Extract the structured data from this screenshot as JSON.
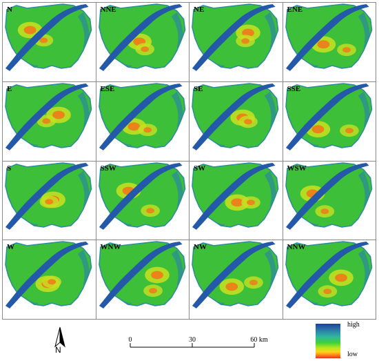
{
  "panels": [
    {
      "label": "N"
    },
    {
      "label": "NNE"
    },
    {
      "label": "NE"
    },
    {
      "label": "ENE"
    },
    {
      "label": "E"
    },
    {
      "label": "ESE"
    },
    {
      "label": "SE"
    },
    {
      "label": "SSE"
    },
    {
      "label": "S"
    },
    {
      "label": "SSW"
    },
    {
      "label": "SW"
    },
    {
      "label": "WSW"
    },
    {
      "label": "W"
    },
    {
      "label": "WNW"
    },
    {
      "label": "NW"
    },
    {
      "label": "NNW"
    }
  ],
  "north_arrow": {
    "label": "N"
  },
  "scale_bar": {
    "ticks": [
      "0",
      "30",
      "60 km"
    ]
  },
  "legend": {
    "high_label": "high",
    "low_label": "low",
    "colors": [
      "#1f3f9e",
      "#2e86a8",
      "#3fd13a",
      "#ffd21a",
      "#e8321a"
    ]
  },
  "map_colors": {
    "river": "#2458a8",
    "base": "#3dbf3a",
    "hot": "#f07a1a",
    "mid": "#c8e020",
    "edge": "#2a8aa0"
  }
}
